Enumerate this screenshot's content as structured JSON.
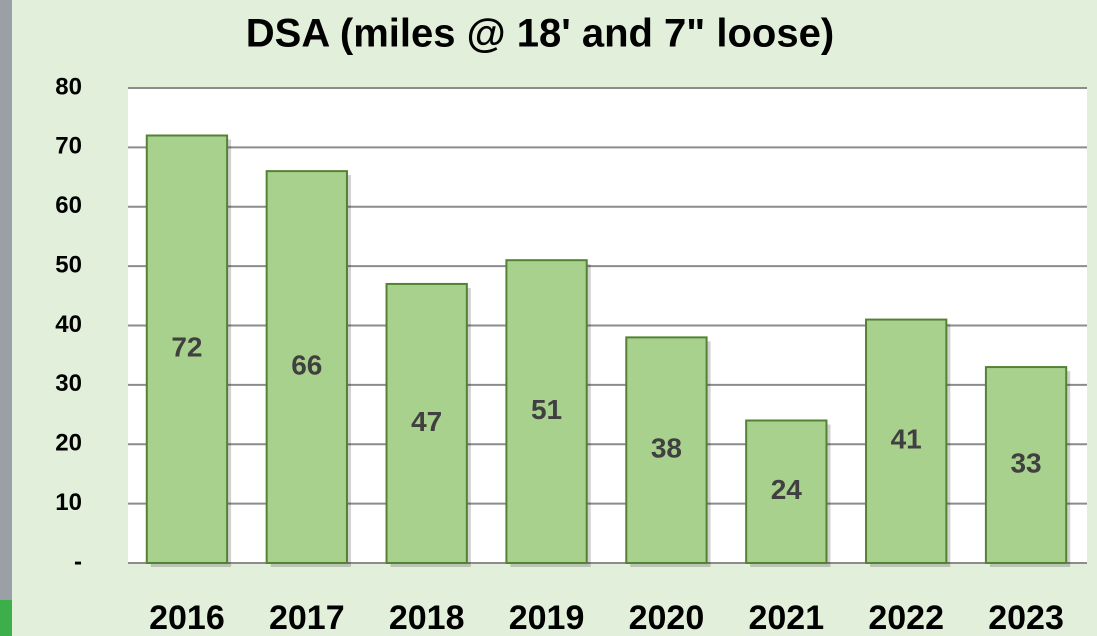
{
  "chart_data": {
    "type": "bar",
    "title": "DSA (miles @ 18' and 7\" loose)",
    "categories": [
      "2016",
      "2017",
      "2018",
      "2019",
      "2020",
      "2021",
      "2022",
      "2023"
    ],
    "values": [
      72,
      66,
      47,
      51,
      38,
      24,
      41,
      33
    ],
    "color": "#a9d18e",
    "edge_color": "#548235",
    "ylim": [
      0,
      80
    ],
    "yticks": [
      {
        "value": 0,
        "label": "-"
      },
      10,
      20,
      30,
      40,
      50,
      60,
      70,
      80
    ],
    "grid": true
  }
}
